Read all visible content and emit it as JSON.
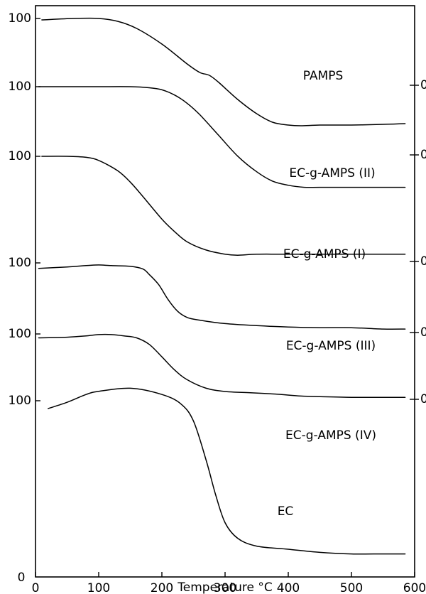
{
  "chart_data": {
    "type": "line",
    "xlabel": "Temperature °C",
    "ylabel": "",
    "xlim": [
      0,
      600
    ],
    "x_ticks": [
      "0",
      "100",
      "200",
      "300",
      "400",
      "500",
      "600"
    ],
    "y_bottom_label": "0",
    "y_left_label": "100",
    "y_right_label": "0",
    "grid": false,
    "series": [
      {
        "name": "PAMPS",
        "x": [
          10,
          60,
          100,
          130,
          160,
          200,
          240,
          260,
          275,
          290,
          320,
          350,
          375,
          400,
          420,
          450,
          500,
          550,
          585
        ],
        "y": [
          99,
          100,
          100,
          98,
          93,
          82,
          68,
          62,
          60,
          55,
          43,
          33,
          27,
          25,
          24.5,
          25,
          25,
          25.5,
          26
        ]
      },
      {
        "name": "EC-g-AMPS (II)",
        "x": [
          5,
          50,
          100,
          150,
          180,
          200,
          220,
          240,
          260,
          290,
          320,
          350,
          375,
          400,
          425,
          450,
          500,
          550,
          585
        ],
        "y": [
          100,
          100,
          100,
          100,
          99,
          97,
          92,
          84,
          73,
          53,
          33,
          18,
          9,
          5,
          3,
          3,
          3,
          3,
          3
        ]
      },
      {
        "name": "EC-g-AMPS (I)",
        "x": [
          10,
          50,
          80,
          100,
          130,
          150,
          170,
          200,
          220,
          240,
          270,
          300,
          320,
          350,
          400,
          450,
          500,
          550,
          585
        ],
        "y": [
          100,
          100,
          99,
          96,
          86,
          75,
          61,
          39,
          27,
          17,
          9,
          5,
          4,
          5,
          5,
          5,
          5,
          5,
          5
        ]
      },
      {
        "name": "EC-g-AMPS (III)",
        "x": [
          5,
          50,
          80,
          100,
          120,
          150,
          170,
          180,
          195,
          210,
          225,
          240,
          260,
          300,
          350,
          400,
          450,
          500,
          550,
          585
        ],
        "y": [
          92,
          94,
          96,
          97,
          96,
          95,
          91,
          83,
          68,
          46,
          29,
          20,
          16,
          11,
          8,
          6,
          5,
          5,
          3,
          3
        ]
      },
      {
        "name": "EC-g-AMPS (IV)",
        "x": [
          5,
          50,
          80,
          100,
          120,
          140,
          160,
          180,
          200,
          220,
          240,
          270,
          300,
          340,
          380,
          420,
          450,
          500,
          550,
          585
        ],
        "y": [
          94,
          95,
          97,
          99,
          99,
          97,
          94,
          84,
          65,
          45,
          30,
          17,
          12,
          10,
          8,
          5,
          4,
          3,
          3,
          3
        ]
      },
      {
        "name": "EC",
        "x": [
          20,
          50,
          80,
          100,
          150,
          200,
          230,
          250,
          270,
          285,
          300,
          320,
          350,
          400,
          450,
          500,
          550,
          585
        ],
        "y": [
          95,
          99,
          104,
          106,
          108,
          104,
          98,
          87,
          62,
          40,
          22,
          12,
          7,
          5,
          3,
          2,
          2,
          2
        ]
      }
    ]
  }
}
